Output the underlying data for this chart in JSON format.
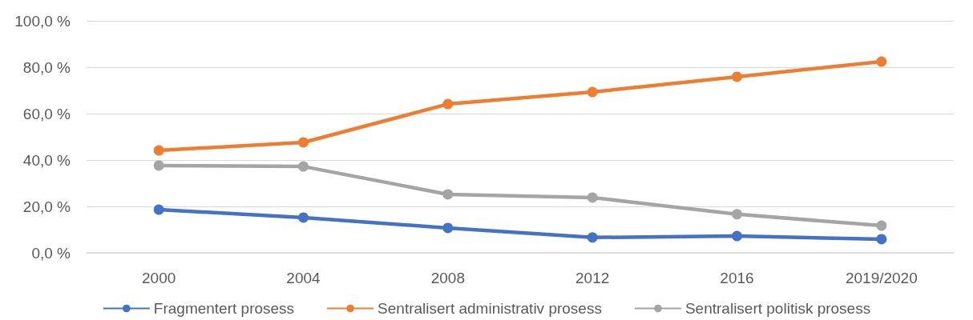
{
  "chart_data": {
    "type": "line",
    "categories": [
      "2000",
      "2004",
      "2008",
      "2012",
      "2016",
      "2019/2020"
    ],
    "series": [
      {
        "name": "Fragmentert prosess",
        "color": "#4472c4",
        "values": [
          18.6,
          15.2,
          10.7,
          6.6,
          7.2,
          5.9
        ]
      },
      {
        "name": "Sentralisert administrativ prosess",
        "color": "#ed7d31",
        "values": [
          44.1,
          47.6,
          64.1,
          69.3,
          75.9,
          82.4
        ]
      },
      {
        "name": "Sentralisert politisk prosess",
        "color": "#a5a5a5",
        "values": [
          37.6,
          37.2,
          25.2,
          23.8,
          16.6,
          11.7
        ]
      }
    ],
    "ylim": [
      0,
      100
    ],
    "yticks": [
      {
        "value": 0,
        "label": "0,0 %"
      },
      {
        "value": 20,
        "label": "20,0 %"
      },
      {
        "value": 40,
        "label": "40,0 %"
      },
      {
        "value": 60,
        "label": "60,0 %"
      },
      {
        "value": 80,
        "label": "80,0 %"
      },
      {
        "value": 100,
        "label": "100,0 %"
      }
    ],
    "grid": "y",
    "legend": "bottom",
    "marker": "circle",
    "line_style": "solid"
  }
}
